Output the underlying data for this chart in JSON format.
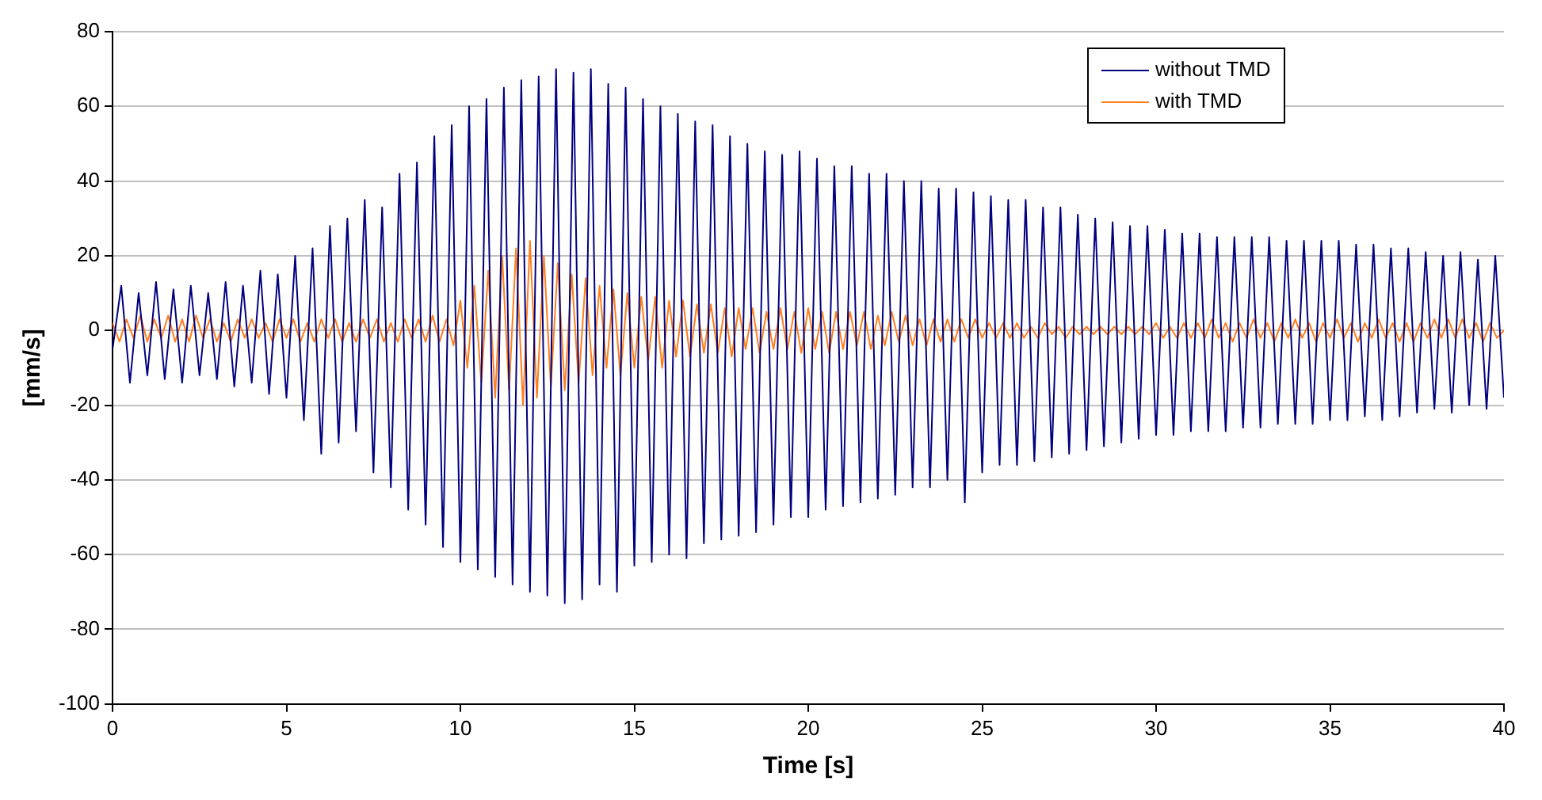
{
  "chart_data": {
    "type": "line",
    "xlabel": "Time [s]",
    "ylabel": "[mm/s]",
    "xlim": [
      0,
      40
    ],
    "xticks": [
      0,
      5,
      10,
      15,
      20,
      25,
      30,
      35,
      40
    ],
    "ylim": [
      -100,
      80
    ],
    "yticks": [
      -100,
      -80,
      -60,
      -40,
      -20,
      0,
      20,
      40,
      60,
      80
    ],
    "grid": "y",
    "legend": "top right",
    "series": [
      {
        "name": "without TMD",
        "color": "#000080",
        "x": [
          0,
          0.25,
          0.5,
          0.75,
          1,
          1.25,
          1.5,
          1.75,
          2,
          2.25,
          2.5,
          2.75,
          3,
          3.25,
          3.5,
          3.75,
          4,
          4.25,
          4.5,
          4.75,
          5,
          5.25,
          5.5,
          5.75,
          6,
          6.25,
          6.5,
          6.75,
          7,
          7.25,
          7.5,
          7.75,
          8,
          8.25,
          8.5,
          8.75,
          9,
          9.25,
          9.5,
          9.75,
          10,
          10.25,
          10.5,
          10.75,
          11,
          11.25,
          11.5,
          11.75,
          12,
          12.25,
          12.5,
          12.75,
          13,
          13.25,
          13.5,
          13.75,
          14,
          14.25,
          14.5,
          14.75,
          15,
          15.25,
          15.5,
          15.75,
          16,
          16.25,
          16.5,
          16.75,
          17,
          17.25,
          17.5,
          17.75,
          18,
          18.25,
          18.5,
          18.75,
          19,
          19.25,
          19.5,
          19.75,
          20,
          20.25,
          20.5,
          20.75,
          21,
          21.25,
          21.5,
          21.75,
          22,
          22.25,
          22.5,
          22.75,
          23,
          23.25,
          23.5,
          23.75,
          24,
          24.25,
          24.5,
          24.75,
          25,
          25.25,
          25.5,
          25.75,
          26,
          26.25,
          26.5,
          26.75,
          27,
          27.25,
          27.5,
          27.75,
          28,
          28.25,
          28.5,
          28.75,
          29,
          29.25,
          29.5,
          29.75,
          30,
          30.25,
          30.5,
          30.75,
          31,
          31.25,
          31.5,
          31.75,
          32,
          32.25,
          32.5,
          32.75,
          33,
          33.25,
          33.5,
          33.75,
          34,
          34.25,
          34.5,
          34.75,
          35,
          35.25,
          35.5,
          35.75,
          36,
          36.25,
          36.5,
          36.75,
          37,
          37.25,
          37.5,
          37.75,
          38,
          38.25,
          38.5,
          38.75,
          39,
          39.25,
          39.5,
          39.75,
          40
        ],
        "values": [
          -5,
          12,
          -14,
          10,
          -12,
          13,
          -13,
          11,
          -14,
          12,
          -12,
          10,
          -13,
          13,
          -15,
          12,
          -14,
          16,
          -17,
          15,
          -18,
          20,
          -24,
          22,
          -33,
          28,
          -30,
          30,
          -27,
          35,
          -38,
          33,
          -42,
          42,
          -48,
          45,
          -52,
          52,
          -58,
          55,
          -62,
          60,
          -64,
          62,
          -66,
          65,
          -68,
          67,
          -70,
          68,
          -71,
          70,
          -73,
          69,
          -72,
          70,
          -68,
          66,
          -70,
          65,
          -63,
          62,
          -62,
          60,
          -60,
          58,
          -61,
          56,
          -57,
          55,
          -56,
          52,
          -55,
          50,
          -54,
          48,
          -52,
          47,
          -50,
          48,
          -50,
          46,
          -48,
          44,
          -47,
          44,
          -46,
          42,
          -45,
          42,
          -44,
          40,
          -42,
          40,
          -42,
          38,
          -40,
          38,
          -46,
          37,
          -38,
          36,
          -36,
          35,
          -36,
          35,
          -35,
          33,
          -34,
          33,
          -33,
          31,
          -32,
          30,
          -31,
          29,
          -30,
          28,
          -29,
          28,
          -28,
          27,
          -28,
          26,
          -27,
          26,
          -27,
          25,
          -27,
          25,
          -26,
          25,
          -26,
          25,
          -25,
          24,
          -25,
          24,
          -25,
          24,
          -24,
          24,
          -24,
          23,
          -23,
          23,
          -24,
          22,
          -23,
          22,
          -22,
          21,
          -21,
          20,
          -22,
          21,
          -20,
          19,
          -21,
          20,
          -18
        ]
      },
      {
        "name": "with TMD",
        "color": "#ff7f1f",
        "x": [
          0,
          0.2,
          0.4,
          0.6,
          0.8,
          1,
          1.2,
          1.4,
          1.6,
          1.8,
          2,
          2.2,
          2.4,
          2.6,
          2.8,
          3,
          3.2,
          3.4,
          3.6,
          3.8,
          4,
          4.2,
          4.4,
          4.6,
          4.8,
          5,
          5.2,
          5.4,
          5.6,
          5.8,
          6,
          6.2,
          6.4,
          6.6,
          6.8,
          7,
          7.2,
          7.4,
          7.6,
          7.8,
          8,
          8.2,
          8.4,
          8.6,
          8.8,
          9,
          9.2,
          9.4,
          9.6,
          9.8,
          10,
          10.2,
          10.4,
          10.6,
          10.8,
          11,
          11.2,
          11.4,
          11.6,
          11.8,
          12,
          12.2,
          12.4,
          12.6,
          12.8,
          13,
          13.2,
          13.4,
          13.6,
          13.8,
          14,
          14.2,
          14.4,
          14.6,
          14.8,
          15,
          15.2,
          15.4,
          15.6,
          15.8,
          16,
          16.2,
          16.4,
          16.6,
          16.8,
          17,
          17.2,
          17.4,
          17.6,
          17.8,
          18,
          18.2,
          18.4,
          18.6,
          18.8,
          19,
          19.2,
          19.4,
          19.6,
          19.8,
          20,
          20.2,
          20.4,
          20.6,
          20.8,
          21,
          21.2,
          21.4,
          21.6,
          21.8,
          22,
          22.2,
          22.4,
          22.6,
          22.8,
          23,
          23.2,
          23.4,
          23.6,
          23.8,
          24,
          24.2,
          24.4,
          24.6,
          24.8,
          25,
          25.2,
          25.4,
          25.6,
          25.8,
          26,
          26.2,
          26.4,
          26.6,
          26.8,
          27,
          27.2,
          27.4,
          27.6,
          27.8,
          28,
          28.2,
          28.4,
          28.6,
          28.8,
          29,
          29.2,
          29.4,
          29.6,
          29.8,
          30,
          30.2,
          30.4,
          30.6,
          30.8,
          31,
          31.2,
          31.4,
          31.6,
          31.8,
          32,
          32.2,
          32.4,
          32.6,
          32.8,
          33,
          33.2,
          33.4,
          33.6,
          33.8,
          34,
          34.2,
          34.4,
          34.6,
          34.8,
          35,
          35.2,
          35.4,
          35.6,
          35.8,
          36,
          36.2,
          36.4,
          36.6,
          36.8,
          37,
          37.2,
          37.4,
          37.6,
          37.8,
          38,
          38.2,
          38.4,
          38.6,
          38.8,
          39,
          39.2,
          39.4,
          39.6,
          39.8,
          40
        ],
        "values": [
          2,
          -3,
          3,
          -2,
          4,
          -3,
          3,
          -2,
          4,
          -3,
          3,
          -3,
          4,
          -2,
          3,
          -3,
          2,
          -3,
          3,
          -2,
          3,
          -2,
          2,
          -3,
          3,
          -2,
          3,
          -3,
          2,
          -3,
          3,
          -2,
          3,
          -3,
          2,
          -3,
          3,
          -2,
          3,
          -3,
          2,
          -3,
          3,
          -2,
          3,
          -3,
          4,
          -3,
          3,
          -4,
          8,
          -10,
          12,
          -14,
          16,
          -18,
          20,
          -16,
          22,
          -20,
          24,
          -18,
          20,
          -15,
          18,
          -16,
          15,
          -14,
          14,
          -12,
          12,
          -10,
          11,
          -12,
          10,
          -10,
          9,
          -8,
          9,
          -10,
          8,
          -7,
          8,
          -7,
          7,
          -6,
          7,
          -6,
          6,
          -7,
          6,
          -5,
          6,
          -6,
          5,
          -5,
          6,
          -5,
          5,
          -6,
          6,
          -5,
          5,
          -6,
          5,
          -5,
          5,
          -4,
          5,
          -5,
          4,
          -4,
          5,
          -3,
          4,
          -4,
          3,
          -4,
          3,
          -3,
          3,
          -3,
          3,
          -2,
          3,
          -2,
          2,
          -2,
          2,
          -2,
          2,
          -2,
          1,
          -2,
          2,
          -1,
          1,
          -2,
          1,
          -1,
          1,
          -1,
          1,
          -1,
          1,
          -1,
          1,
          -1,
          1,
          -1,
          2,
          -2,
          1,
          -2,
          2,
          -2,
          2,
          -2,
          3,
          -2,
          2,
          -3,
          2,
          -2,
          3,
          -2,
          2,
          -3,
          2,
          -2,
          3,
          -2,
          2,
          -3,
          2,
          -2,
          3,
          -2,
          2,
          -3,
          2,
          -2,
          3,
          -2,
          2,
          -3,
          2,
          -3,
          2,
          -2,
          3,
          -2,
          3,
          -2,
          3,
          -2,
          2,
          -3,
          2,
          -2,
          0
        ]
      }
    ]
  }
}
